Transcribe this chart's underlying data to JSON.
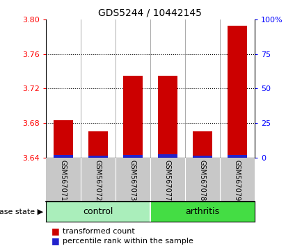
{
  "title": "GDS5244 / 10442145",
  "samples": [
    "GSM567071",
    "GSM567072",
    "GSM567073",
    "GSM567077",
    "GSM567078",
    "GSM567079"
  ],
  "groups": [
    "control",
    "control",
    "control",
    "arthritis",
    "arthritis",
    "arthritis"
  ],
  "red_values": [
    3.683,
    3.67,
    3.735,
    3.735,
    3.67,
    3.793
  ],
  "blue_values": [
    3.643,
    3.642,
    3.643,
    3.644,
    3.642,
    3.643
  ],
  "baseline": 3.64,
  "ylim": [
    3.64,
    3.8
  ],
  "yticks": [
    3.64,
    3.68,
    3.72,
    3.76,
    3.8
  ],
  "right_ytick_vals": [
    0,
    25,
    50,
    75,
    100
  ],
  "right_ylabels": [
    "0",
    "25",
    "50",
    "75",
    "100%"
  ],
  "bar_width": 0.55,
  "red_color": "#CC0000",
  "blue_color": "#2222CC",
  "label_area_color": "#C8C8C8",
  "control_color": "#AAEEBB",
  "arthritis_color": "#44DD44",
  "legend_red": "transformed count",
  "legend_blue": "percentile rank within the sample",
  "disease_state_label": "disease state",
  "title_fontsize": 10,
  "tick_fontsize": 8,
  "sample_fontsize": 7,
  "group_fontsize": 9,
  "legend_fontsize": 8
}
